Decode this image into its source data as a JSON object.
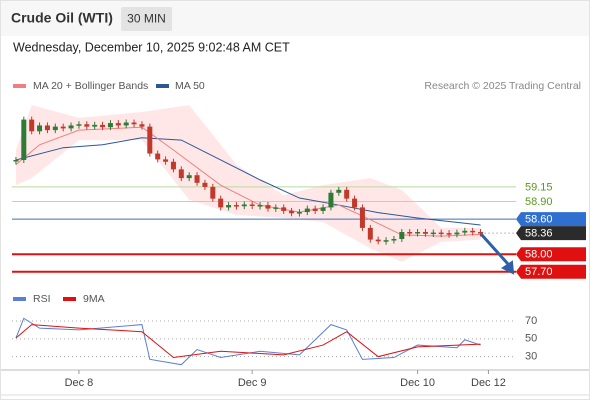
{
  "header": {
    "title": "Crude Oil (WTI)",
    "interval": "30 MIN",
    "timestamp": "Wednesday, December 10, 2025 9:02:48 AM CET"
  },
  "chart_data": [
    {
      "type": "candlestick",
      "copyright": "Research © 2025 Trading Central",
      "xlim": [
        -0.5,
        63.5
      ],
      "xticks": [
        {
          "value": 8,
          "label": "Dec 8"
        },
        {
          "value": 30,
          "label": "Dec 9"
        },
        {
          "value": 51,
          "label": "Dec 10"
        },
        {
          "value": 60,
          "label": "Dec 12"
        }
      ],
      "ylim": [
        57.56,
        60.72
      ],
      "up_color": "#2f7a35",
      "down_color": "#c0392b",
      "close": [
        59.61,
        60.3,
        60.1,
        60.2,
        60.12,
        60.18,
        60.15,
        60.2,
        60.22,
        60.18,
        60.21,
        60.17,
        60.24,
        60.2,
        60.25,
        60.22,
        60.18,
        59.72,
        59.62,
        59.58,
        59.45,
        59.3,
        59.35,
        59.22,
        59.15,
        58.95,
        58.8,
        58.84,
        58.82,
        58.85,
        58.83,
        58.84,
        58.78,
        58.8,
        58.74,
        58.7,
        58.72,
        58.78,
        58.74,
        58.8,
        59.05,
        59.1,
        58.95,
        58.8,
        58.45,
        58.25,
        58.22,
        58.24,
        58.26,
        58.38,
        58.36,
        58.38,
        58.35,
        58.37,
        58.36,
        58.34,
        58.37,
        58.4,
        58.38,
        58.36
      ],
      "band": {
        "color": "#ffc9c9",
        "x": [
          0,
          2,
          8,
          16,
          22,
          28,
          34,
          39,
          45,
          49,
          54,
          59
        ],
        "upper": [
          59.78,
          60.55,
          60.33,
          60.43,
          60.55,
          59.53,
          59.01,
          59.18,
          59.3,
          59.1,
          58.45,
          58.45
        ],
        "lower": [
          59.18,
          59.3,
          59.95,
          59.95,
          58.93,
          58.67,
          58.62,
          58.55,
          58.1,
          57.87,
          58.21,
          58.25
        ]
      },
      "ma20": {
        "name": "MA 20 + Bollinger Bands",
        "color": "#f08080",
        "x": [
          0,
          3,
          8,
          16,
          20,
          26,
          31,
          36,
          41,
          45,
          49,
          54,
          59
        ],
        "values": [
          59.53,
          59.87,
          60.12,
          60.17,
          59.78,
          59.18,
          58.84,
          58.72,
          58.84,
          58.59,
          58.33,
          58.31,
          58.34
        ]
      },
      "ma50": {
        "name": "MA 50",
        "color": "#2b5797",
        "x": [
          0,
          6,
          11,
          16,
          21,
          26,
          31,
          36,
          41,
          46,
          51,
          59
        ],
        "values": [
          59.61,
          59.82,
          59.87,
          59.99,
          59.95,
          59.61,
          59.27,
          58.96,
          58.84,
          58.71,
          58.62,
          58.5
        ]
      },
      "levels": [
        {
          "value": 59.15,
          "label": "59.15",
          "line_color": "#b9d99e",
          "label_fill": "none",
          "text_color": "#5a9a1e"
        },
        {
          "value": 58.9,
          "label": "58.90",
          "line_color": "#b9d99e",
          "label_fill": "none",
          "text_color": "#5a9a1e"
        },
        {
          "value": 58.6,
          "label": "58.60",
          "line_color": "#3f6fb8",
          "label_fill": "#2f6fd0",
          "text_color": "#ffffff"
        },
        {
          "value": 58.36,
          "label": "58.36",
          "line_color": "#777777",
          "label_fill": "#2b2b2b",
          "text_color": "#ffffff",
          "dotted": true
        },
        {
          "value": 58.0,
          "label": "58.00",
          "line_color": "#e01010",
          "label_fill": "#e01010",
          "text_color": "#ffffff"
        },
        {
          "value": 57.7,
          "label": "57.70",
          "line_color": "#e01010",
          "label_fill": "#e01010",
          "text_color": "#ffffff"
        }
      ]
    },
    {
      "type": "line",
      "xlim": [
        -0.5,
        63.5
      ],
      "ylim": [
        15,
        88
      ],
      "yticks": [
        70,
        50,
        30
      ],
      "series": [
        {
          "name": "RSI",
          "color": "#5b7fd6",
          "x": [
            0,
            1,
            3,
            8,
            16,
            17,
            21,
            23,
            26,
            31,
            36,
            40,
            42,
            44,
            48,
            51,
            56,
            57,
            59
          ],
          "values": [
            51,
            73,
            62,
            60,
            66,
            27,
            21,
            38,
            29,
            36,
            32,
            66,
            60,
            27,
            29,
            43,
            40,
            49,
            43
          ]
        },
        {
          "name": "9MA",
          "color": "#e01010",
          "x": [
            0,
            2,
            8,
            16,
            20,
            26,
            34,
            39,
            42,
            46,
            51,
            59
          ],
          "values": [
            51,
            66,
            62,
            58,
            29,
            36,
            32,
            43,
            58,
            30,
            41,
            44
          ]
        }
      ]
    }
  ]
}
